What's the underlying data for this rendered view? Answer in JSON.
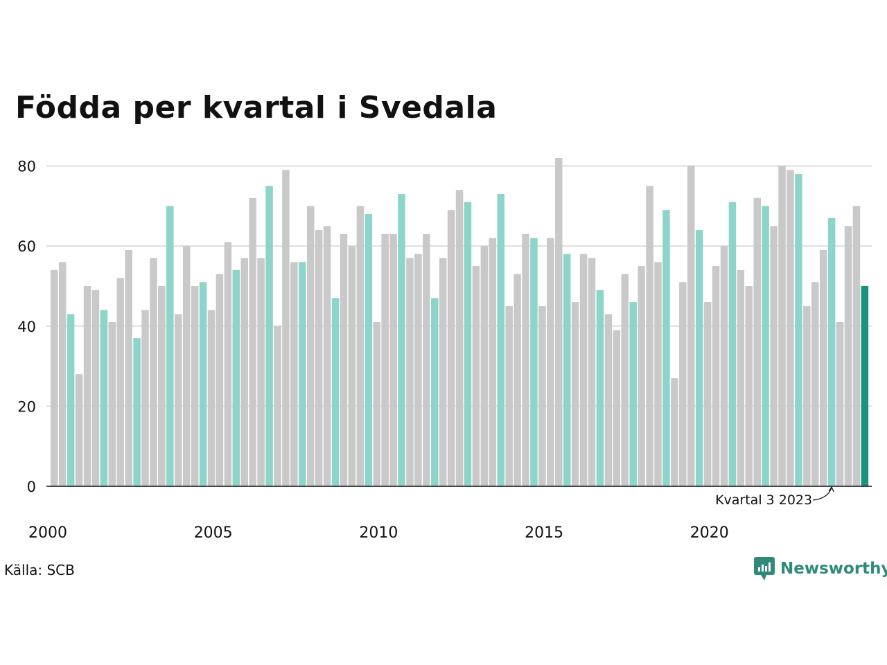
{
  "title": "Födda per kvartal i Svedala",
  "source": "Källa: SCB",
  "brand": "Newsworthy",
  "colors": {
    "normal": "#c9c9c9",
    "q3": "#8dd5cb",
    "latest": "#1b9282",
    "grid": "#dedede",
    "axis": "#111111",
    "brand": "#2f8a7a"
  },
  "chart_data": {
    "type": "bar",
    "ylim": [
      0,
      82
    ],
    "yticks": [
      0,
      20,
      40,
      60,
      80
    ],
    "xticks": [
      "2000",
      "2005",
      "2010",
      "2015",
      "2020"
    ],
    "xtick_years": [
      2000,
      2005,
      2010,
      2015,
      2020
    ],
    "start_year": 2000,
    "highlight_quarter": 3,
    "annotation": "Kvartal 3 2023",
    "annotation_year": 2023,
    "annotation_quarter": 3,
    "values": [
      54,
      56,
      43,
      28,
      50,
      49,
      44,
      41,
      52,
      59,
      37,
      44,
      57,
      50,
      70,
      43,
      60,
      50,
      51,
      44,
      53,
      61,
      54,
      57,
      72,
      57,
      75,
      40,
      79,
      56,
      56,
      70,
      64,
      65,
      47,
      63,
      60,
      70,
      68,
      41,
      63,
      63,
      73,
      57,
      58,
      63,
      47,
      57,
      69,
      74,
      71,
      55,
      60,
      62,
      73,
      45,
      53,
      63,
      62,
      45,
      62,
      82,
      58,
      46,
      58,
      57,
      49,
      43,
      39,
      53,
      46,
      55,
      75,
      56,
      69,
      27,
      51,
      80,
      64,
      46,
      55,
      60,
      71,
      54,
      50,
      72,
      70,
      65,
      80,
      79,
      78,
      45,
      51,
      59,
      67,
      41,
      65,
      70,
      50
    ]
  }
}
